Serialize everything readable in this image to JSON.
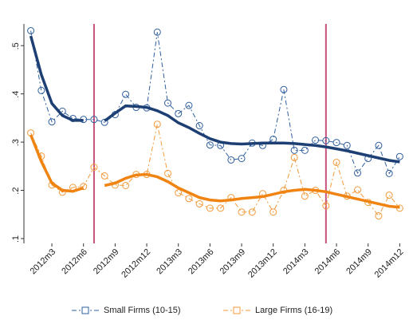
{
  "chart_data": {
    "type": "line",
    "categories": [
      null,
      null,
      "2012m3",
      null,
      null,
      "2012m6",
      null,
      null,
      "2012m9",
      null,
      null,
      "2012m12",
      null,
      null,
      "2013m3",
      null,
      null,
      "2013m6",
      null,
      null,
      "2013m9",
      null,
      null,
      "2013m12",
      null,
      null,
      "2014m3",
      null,
      null,
      "2014m6",
      null,
      null,
      "2014m9",
      null,
      null,
      "2014m12"
    ],
    "series": [
      {
        "name": "Small Firms (10-15)",
        "color": "#2f5f9e",
        "values": [
          0.531,
          0.407,
          0.342,
          0.364,
          0.349,
          0.347,
          0.347,
          0.341,
          0.357,
          0.399,
          0.372,
          0.371,
          0.528,
          0.381,
          0.359,
          0.376,
          0.334,
          0.294,
          0.293,
          0.263,
          0.266,
          0.298,
          0.293,
          0.306,
          0.409,
          0.283,
          0.283,
          0.304,
          0.303,
          0.299,
          0.293,
          0.236,
          0.266,
          0.293,
          0.235,
          0.27
        ]
      },
      {
        "name": "Large Firms (16-19)",
        "color": "#f39a3a",
        "values": [
          0.319,
          0.271,
          0.211,
          0.196,
          0.206,
          0.208,
          0.248,
          0.23,
          0.211,
          0.21,
          0.233,
          0.233,
          0.337,
          0.235,
          0.195,
          0.183,
          0.172,
          0.163,
          0.163,
          0.185,
          0.155,
          0.155,
          0.193,
          0.155,
          0.2,
          0.268,
          0.188,
          0.2,
          0.168,
          0.258,
          0.188,
          0.201,
          0.175,
          0.147,
          0.19,
          0.163
        ]
      },
      {
        "color": "#1d3f73",
        "fit": true,
        "values": [
          0.52,
          0.44,
          0.38,
          0.355,
          0.345,
          0.345,
          null,
          0.344,
          0.36,
          0.375,
          0.374,
          0.372,
          0.365,
          0.355,
          0.34,
          0.33,
          0.318,
          0.307,
          0.3,
          0.297,
          0.296,
          0.297,
          0.298,
          0.298,
          0.298,
          0.297,
          0.295,
          0.293,
          0.29,
          0.286,
          0.282,
          0.277,
          0.272,
          0.267,
          0.262,
          0.259
        ]
      },
      {
        "color": "#f08413",
        "fit": true,
        "values": [
          0.315,
          0.26,
          0.215,
          0.2,
          0.198,
          0.205,
          null,
          0.21,
          0.215,
          0.225,
          0.232,
          0.233,
          0.228,
          0.218,
          0.205,
          0.195,
          0.185,
          0.18,
          0.178,
          0.18,
          0.183,
          0.185,
          0.187,
          0.192,
          0.197,
          0.2,
          0.202,
          0.2,
          0.197,
          0.192,
          0.187,
          0.182,
          0.177,
          0.172,
          0.167,
          0.165
        ]
      }
    ],
    "vlines": [
      6,
      28
    ],
    "vline_color": "#c9507c",
    "ylim": [
      0.09,
      0.545
    ],
    "yticks": [
      {
        "value": 0.1,
        "label": ".1"
      },
      {
        "value": 0.2,
        "label": ".2"
      },
      {
        "value": 0.3,
        "label": ".3"
      },
      {
        "value": 0.4,
        "label": ".4"
      },
      {
        "value": 0.5,
        "label": ".5"
      }
    ]
  }
}
